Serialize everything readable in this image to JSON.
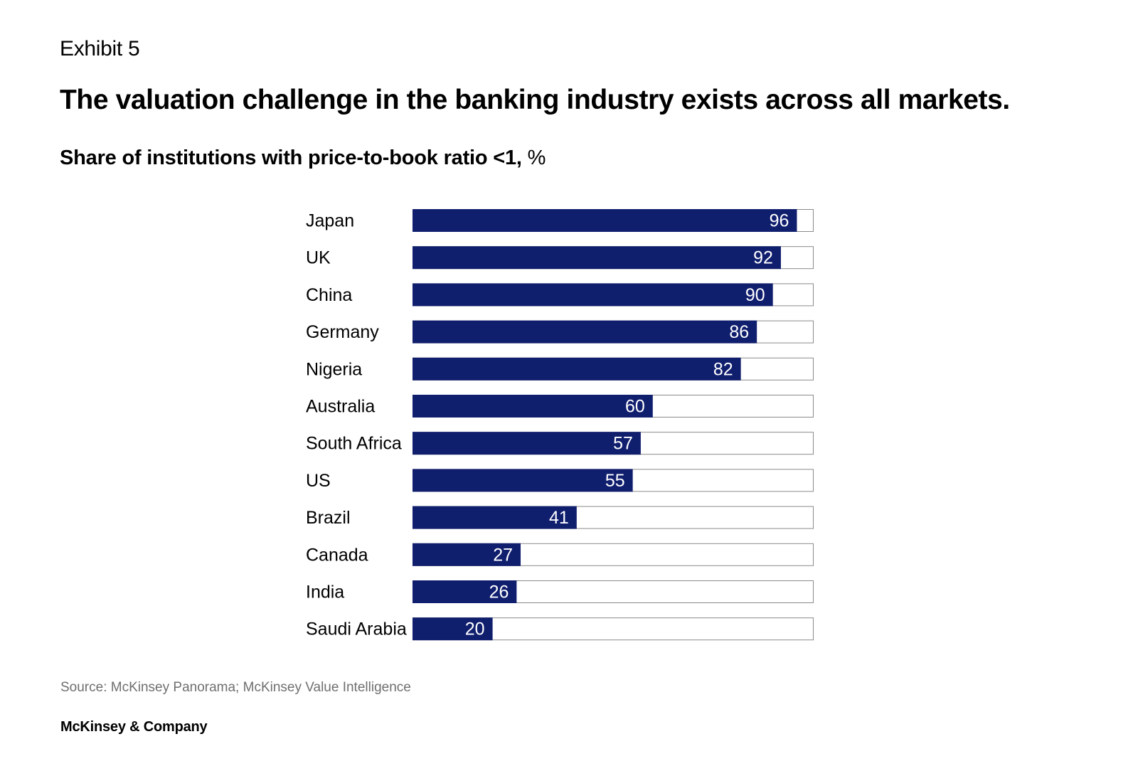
{
  "exhibit": "Exhibit 5",
  "headline": "The valuation challenge in the banking industry exists across all markets.",
  "subtitle_bold": "Share of institutions with price-to-book ratio <1,",
  "subtitle_unit": "%",
  "source": "Source: McKinsey Panorama; McKinsey Value Intelligence",
  "brand": "McKinsey & Company",
  "colors": {
    "bar_fill": "#101e6e",
    "bar_outline": "#8a8a8a",
    "value_label": "#ffffff"
  },
  "chart_data": {
    "type": "bar",
    "orientation": "horizontal",
    "categories": [
      "Japan",
      "UK",
      "China",
      "Germany",
      "Nigeria",
      "Australia",
      "South Africa",
      "US",
      "Brazil",
      "Canada",
      "India",
      "Saudi Arabia"
    ],
    "values": [
      96,
      92,
      90,
      86,
      82,
      60,
      57,
      55,
      41,
      27,
      26,
      20
    ],
    "xlim": [
      0,
      100
    ],
    "grid": false,
    "data_labels": true
  }
}
